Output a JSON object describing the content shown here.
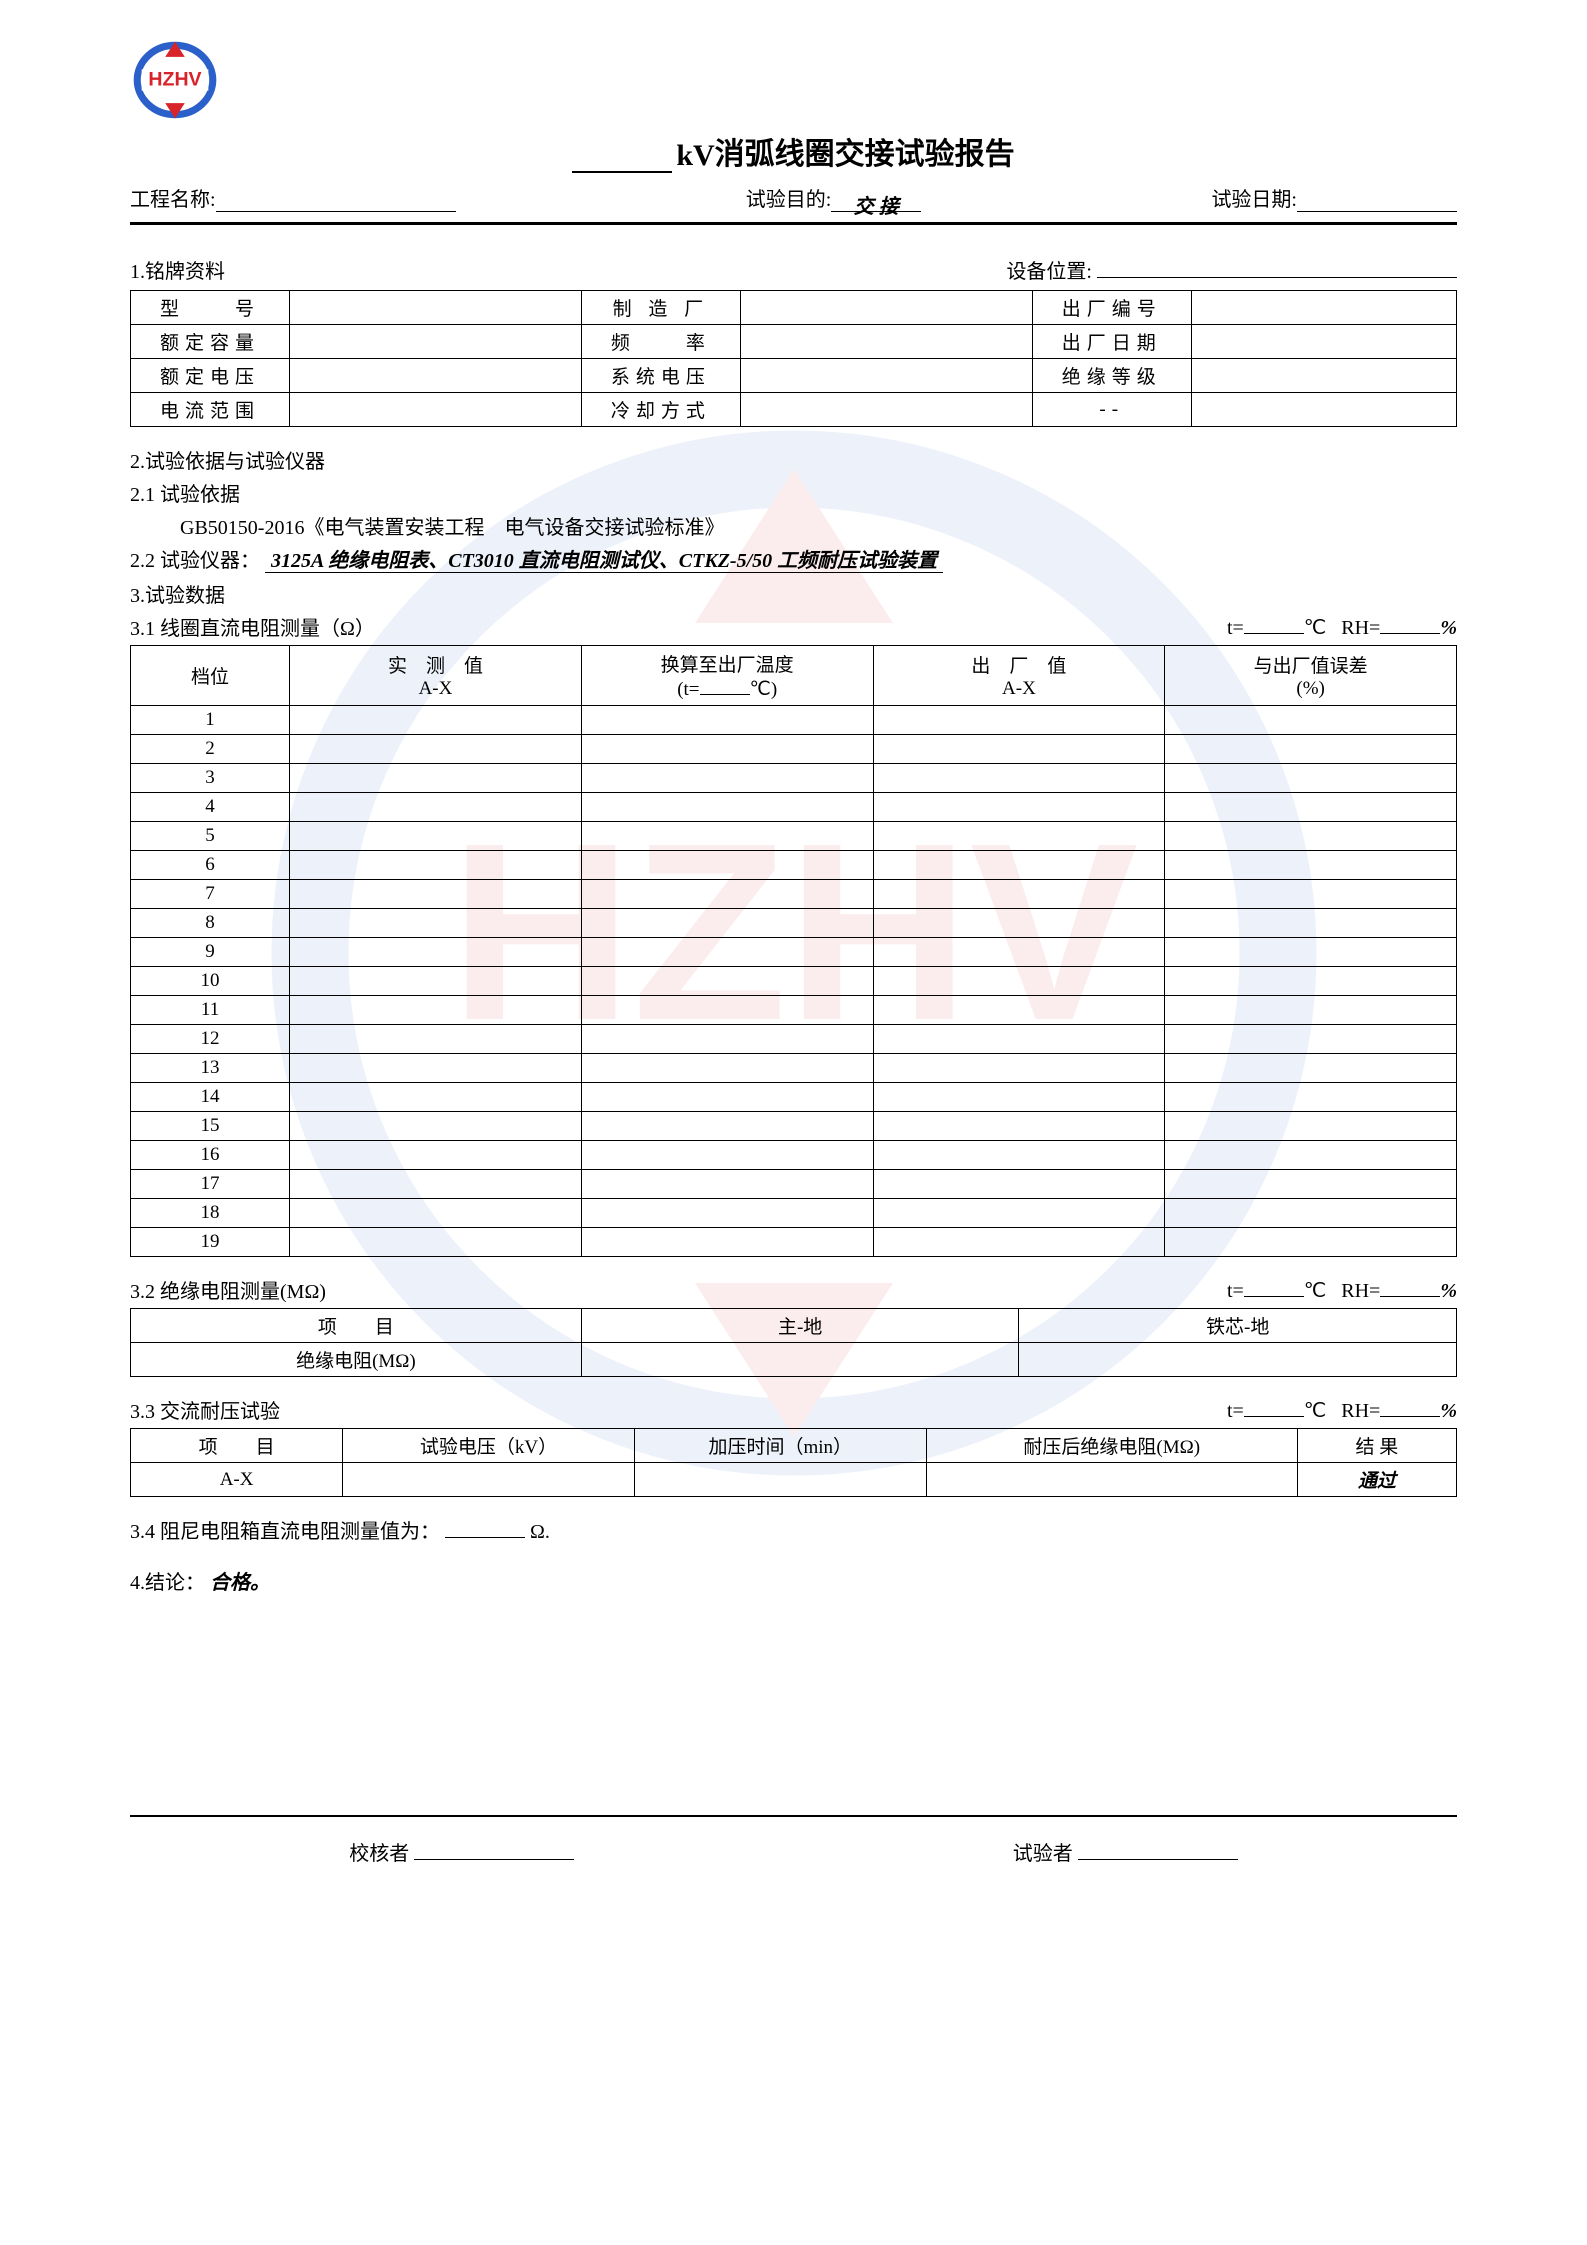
{
  "logo_text": "HZHV",
  "title": {
    "kv": "kV",
    "rest": " 消弧线圈交接试验报告"
  },
  "header": {
    "proj_label": "工程名称:",
    "purpose_label": "试验目的:",
    "purpose_value": "交 接",
    "date_label": "试验日期:"
  },
  "sec1": {
    "title": "1.铭牌资料",
    "pos_label": "设备位置:",
    "rows": [
      [
        "型　　号",
        "",
        "制 造 厂",
        "",
        "出厂编号",
        ""
      ],
      [
        "额定容量",
        "",
        "频　　率",
        "",
        "出厂日期",
        ""
      ],
      [
        "额定电压",
        "",
        "系统电压",
        "",
        "绝缘等级",
        ""
      ],
      [
        "电流范围",
        "",
        "冷却方式",
        "",
        "--",
        ""
      ]
    ]
  },
  "sec2": {
    "title": "2.试验依据与试验仪器",
    "s21": "2.1 试验依据",
    "s21_body": "GB50150-2016《电气装置安装工程　电气设备交接试验标准》",
    "s22_label": "2.2 试验仪器：",
    "s22_value": "3125A 绝缘电阻表、CT3010 直流电阻测试仪、CTKZ-5/50 工频耐压试验装置"
  },
  "sec3": {
    "title": "3.试验数据",
    "s31_label": "3.1 线圈直流电阻测量（Ω）",
    "trh": {
      "t": "t=",
      "c": "℃",
      "rh": "RH=",
      "pct": "%"
    },
    "s31_headers": {
      "c1": "档位",
      "c2a": "实　测　值",
      "c2b": "A-X",
      "c3a": "换算至出厂温度",
      "c3b_pre": "(t=",
      "c3b_post": "℃)",
      "c4a": "出　厂　值",
      "c4b": "A-X",
      "c5a": "与出厂值误差",
      "c5b": "(%)"
    },
    "s31_rows": [
      "1",
      "2",
      "3",
      "4",
      "5",
      "6",
      "7",
      "8",
      "9",
      "10",
      "11",
      "12",
      "13",
      "14",
      "15",
      "16",
      "17",
      "18",
      "19"
    ],
    "s32_label": "3.2 绝缘电阻测量(MΩ)",
    "s32_headers": [
      "项　　目",
      "主-地",
      "铁芯-地"
    ],
    "s32_row1": "绝缘电阻(MΩ)",
    "s33_label": "3.3 交流耐压试验",
    "s33_headers": [
      "项　　目",
      "试验电压（kV）",
      "加压时间（min）",
      "耐压后绝缘电阻(MΩ)",
      "结 果"
    ],
    "s33_row": [
      "A-X",
      "",
      "",
      "",
      "通过"
    ],
    "s34_pre": "3.4 阻尼电阻箱直流电阻测量值为：",
    "s34_unit": "Ω."
  },
  "sec4": {
    "label": "4.结论：",
    "value": "合格。"
  },
  "footer": {
    "reviewer": "校核者",
    "tester": "试验者"
  }
}
